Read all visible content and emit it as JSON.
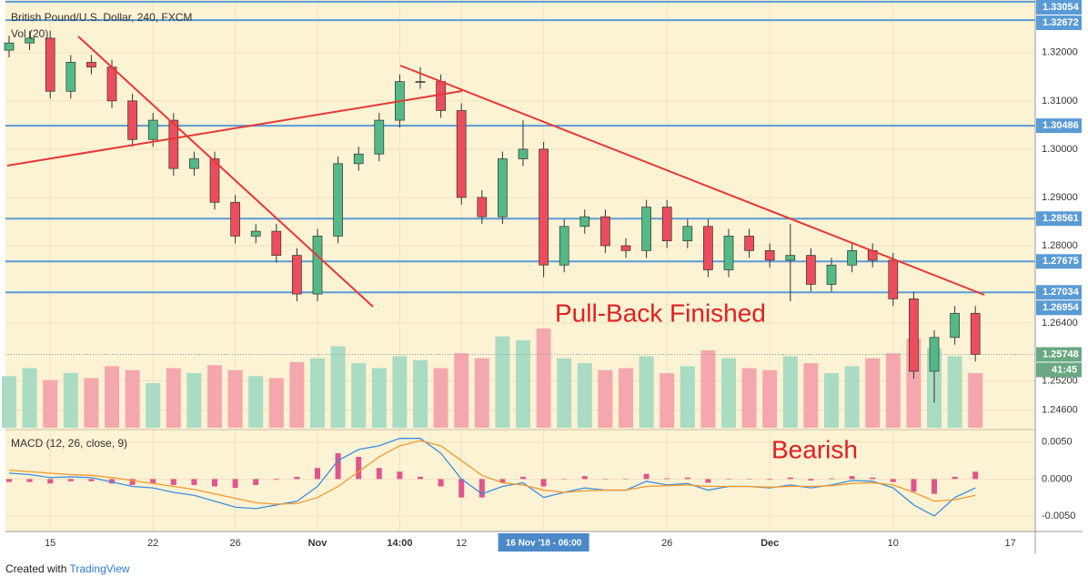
{
  "chart_data": {
    "type": "candlestick",
    "title": "British Pound/U.S. Dollar, 240, FXCM",
    "volume_label": "Vol (20)",
    "macd_label": "MACD (12, 26, close, 9)",
    "annotations": [
      "Pull-Back Finished",
      "Bearish"
    ],
    "categories": [
      null,
      null,
      "15",
      null,
      null,
      null,
      null,
      "22",
      null,
      null,
      null,
      "26",
      null,
      null,
      null,
      "Nov",
      null,
      null,
      null,
      "14:00",
      null,
      null,
      "12",
      null,
      null,
      null,
      "16 Nov '18 - 06:00",
      null,
      null,
      null,
      null,
      null,
      "26",
      null,
      null,
      null,
      null,
      "Dec",
      null,
      null,
      null,
      null,
      null,
      "10",
      null,
      null,
      null,
      null
    ],
    "crosshair_category": 26,
    "next_label": "17",
    "open": [
      1.3205,
      1.322,
      1.323,
      1.312,
      1.318,
      1.317,
      1.31,
      1.302,
      1.306,
      1.296,
      1.298,
      1.289,
      1.282,
      1.283,
      1.278,
      1.27,
      1.282,
      1.297,
      1.299,
      1.306,
      1.314,
      1.314,
      1.308,
      1.29,
      1.286,
      1.298,
      1.3,
      1.276,
      1.284,
      1.286,
      1.28,
      1.279,
      1.288,
      1.281,
      1.284,
      1.275,
      1.282,
      1.279,
      1.277,
      1.278,
      1.272,
      1.276,
      1.279,
      1.277,
      1.269,
      1.254,
      1.261,
      1.266
    ],
    "high": [
      1.3235,
      1.3245,
      1.3245,
      1.3195,
      1.3195,
      1.3185,
      1.3115,
      1.3075,
      1.3075,
      1.2995,
      1.2995,
      1.2905,
      1.2845,
      1.2845,
      1.2795,
      1.2835,
      1.2985,
      1.3005,
      1.3075,
      1.3155,
      1.317,
      1.3155,
      1.3095,
      1.2915,
      1.2995,
      1.306,
      1.3015,
      1.2855,
      1.2875,
      1.2875,
      1.2815,
      1.2895,
      1.2895,
      1.2855,
      1.2855,
      1.2835,
      1.2835,
      1.2805,
      1.2845,
      1.2795,
      1.2775,
      1.2805,
      1.2805,
      1.2785,
      1.2705,
      1.2625,
      1.2675,
      1.2675
    ],
    "low": [
      1.319,
      1.3205,
      1.3105,
      1.3105,
      1.3155,
      1.3085,
      1.3005,
      1.3005,
      1.2945,
      1.2945,
      1.2875,
      1.2805,
      1.2805,
      1.2765,
      1.2685,
      1.2685,
      1.2805,
      1.2955,
      1.2975,
      1.3045,
      1.3125,
      1.3065,
      1.2885,
      1.2845,
      1.2845,
      1.2965,
      1.2735,
      1.2745,
      1.2825,
      1.2785,
      1.2775,
      1.2775,
      1.2795,
      1.2795,
      1.2735,
      1.2735,
      1.2775,
      1.2755,
      1.2685,
      1.2705,
      1.2705,
      1.2745,
      1.2755,
      1.2675,
      1.2525,
      1.2475,
      1.2595,
      1.256
    ],
    "close": [
      1.322,
      1.323,
      1.312,
      1.318,
      1.317,
      1.31,
      1.302,
      1.306,
      1.296,
      1.298,
      1.289,
      1.282,
      1.283,
      1.278,
      1.27,
      1.282,
      1.297,
      1.299,
      1.306,
      1.314,
      1.314,
      1.308,
      1.29,
      1.286,
      1.298,
      1.3,
      1.276,
      1.284,
      1.286,
      1.28,
      1.279,
      1.288,
      1.281,
      1.284,
      1.275,
      1.282,
      1.279,
      1.277,
      1.278,
      1.272,
      1.276,
      1.279,
      1.277,
      1.269,
      1.254,
      1.261,
      1.266,
      1.2575
    ],
    "up_color": "#53b987",
    "down_color": "#eb4d5c",
    "volume": [
      52,
      60,
      48,
      55,
      50,
      62,
      58,
      45,
      60,
      55,
      63,
      58,
      52,
      50,
      66,
      70,
      82,
      65,
      60,
      72,
      68,
      60,
      75,
      70,
      92,
      88,
      100,
      70,
      65,
      58,
      60,
      72,
      55,
      62,
      78,
      70,
      60,
      58,
      72,
      65,
      55,
      62,
      70,
      75,
      90,
      80,
      72,
      55
    ],
    "vlim": [
      0,
      110
    ],
    "up_volume_color": "#a9dcc3",
    "down_volume_color": "#f4a8ae",
    "ylim": [
      1.2423,
      1.3309
    ],
    "yticks": [
      {
        "value": 1.32,
        "label": "1.32000"
      },
      {
        "value": 1.31,
        "label": "1.31000"
      },
      {
        "value": 1.3,
        "label": "1.30000"
      },
      {
        "value": 1.29,
        "label": "1.29000"
      },
      {
        "value": 1.28,
        "label": "1.28000"
      },
      {
        "value": 1.264,
        "label": "1.26400"
      },
      {
        "value": 1.252,
        "label": "1.25200"
      },
      {
        "value": 1.246,
        "label": "1.24600"
      }
    ],
    "levels": [
      1.33054,
      1.32672,
      1.30486,
      1.28561,
      1.27675,
      1.27034
    ],
    "level_color": "#5b9bd5",
    "marker_level": 1.26954,
    "last_price": 1.25748,
    "countdown": "41:45",
    "last_color": "#6aa883",
    "grid": true,
    "macd": [
      0.0008,
      0.0006,
      0.0002,
      0.0003,
      0.0002,
      -0.0004,
      -0.001,
      -0.0012,
      -0.0018,
      -0.0022,
      -0.003,
      -0.0038,
      -0.004,
      -0.0035,
      -0.003,
      -0.001,
      0.0025,
      0.004,
      0.0045,
      0.0055,
      0.0055,
      0.0035,
      0.0,
      -0.002,
      -0.001,
      -0.0005,
      -0.0025,
      -0.0018,
      -0.0012,
      -0.0015,
      -0.0015,
      -0.0003,
      -0.0008,
      -0.0006,
      -0.0015,
      -0.001,
      -0.001,
      -0.0012,
      -0.0008,
      -0.0012,
      -0.0008,
      -0.0002,
      -0.0003,
      -0.0012,
      -0.0035,
      -0.005,
      -0.0025,
      -0.0012
    ],
    "signal": [
      0.0012,
      0.001,
      0.0008,
      0.0006,
      0.0005,
      0.0002,
      -0.0002,
      -0.0006,
      -0.001,
      -0.0014,
      -0.002,
      -0.0026,
      -0.0032,
      -0.0034,
      -0.0033,
      -0.0025,
      -0.001,
      0.001,
      0.003,
      0.0045,
      0.0052,
      0.0045,
      0.0025,
      0.0005,
      -0.0005,
      -0.0008,
      -0.0015,
      -0.0018,
      -0.0016,
      -0.0015,
      -0.0015,
      -0.001,
      -0.0009,
      -0.0008,
      -0.001,
      -0.001,
      -0.001,
      -0.0011,
      -0.001,
      -0.001,
      -0.0009,
      -0.0006,
      -0.0005,
      -0.0008,
      -0.0018,
      -0.003,
      -0.0028,
      -0.0022
    ],
    "histogram": [
      -0.0004,
      -0.0004,
      -0.0006,
      -0.0003,
      -0.0003,
      -0.0006,
      -0.0008,
      -0.0006,
      -0.0008,
      -0.0008,
      -0.001,
      -0.0012,
      -0.0008,
      -0.0001,
      0.0003,
      0.0015,
      0.0035,
      0.003,
      0.0015,
      0.001,
      0.0003,
      -0.001,
      -0.0025,
      -0.0025,
      -0.0005,
      0.0003,
      -0.001,
      0.0,
      0.0004,
      0.0,
      0.0,
      0.0007,
      0.0001,
      0.0002,
      -0.0005,
      0.0,
      0.0,
      -0.0001,
      0.0002,
      -0.0002,
      0.0001,
      0.0004,
      0.0002,
      -0.0004,
      -0.0017,
      -0.002,
      0.0003,
      0.001
    ],
    "macd_color": "#3d8fe0",
    "signal_color": "#f29a2e",
    "histogram_color": "#e0558c",
    "macd_ylim": [
      -0.0066,
      0.0062
    ],
    "macd_yticks": [
      {
        "value": 0.005,
        "label": "0.0050"
      },
      {
        "value": 0,
        "label": "0.0000"
      },
      {
        "value": -0.005,
        "label": "-0.0050"
      }
    ],
    "credit": [
      "Created with",
      "TradingView"
    ]
  }
}
